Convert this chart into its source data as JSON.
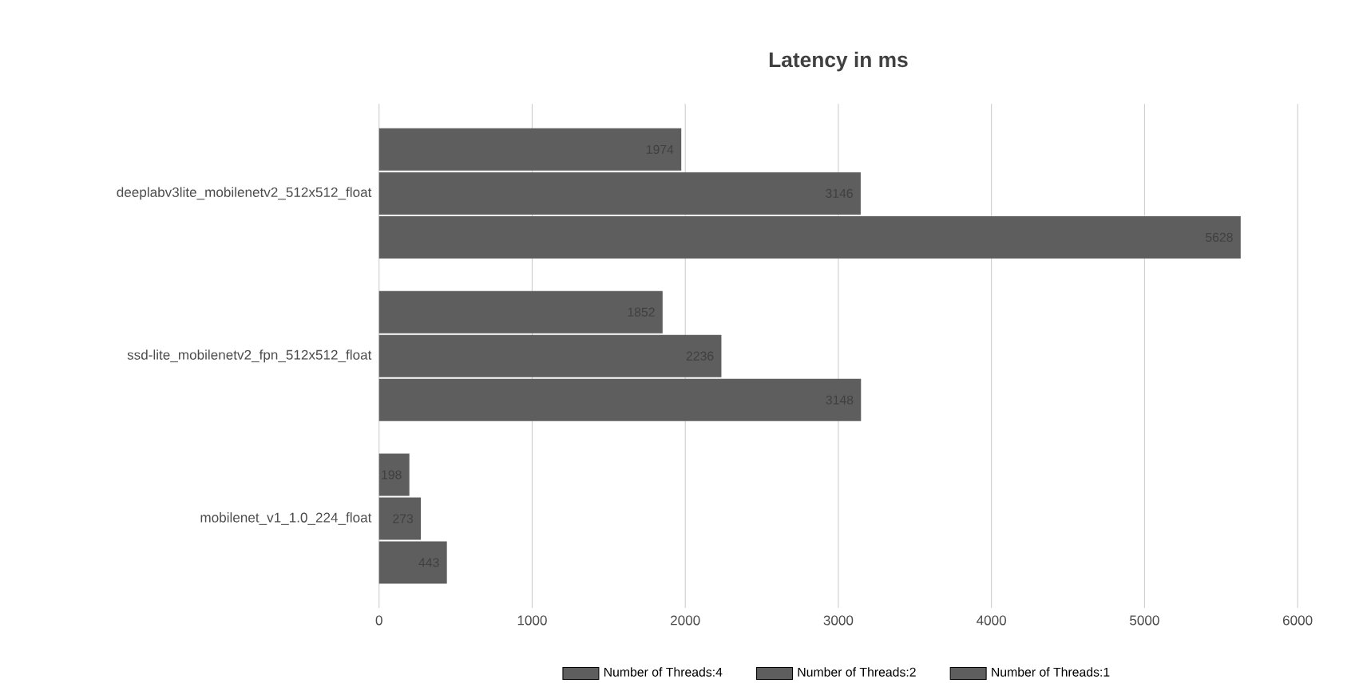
{
  "chart_data": {
    "type": "bar",
    "orientation": "horizontal",
    "title": "Latency in ms",
    "categories": [
      "deeplabv3lite_mobilenetv2_512x512_float",
      "ssd-lite_mobilenetv2_fpn_512x512_float",
      "mobilenet_v1_1.0_224_float"
    ],
    "series": [
      {
        "name": "Number of Threads:4",
        "color": "#5e5e5e",
        "values": [
          1974,
          1852,
          198
        ]
      },
      {
        "name": "Number of Threads:2",
        "color": "#5e5e5e",
        "values": [
          3146,
          2236,
          273
        ]
      },
      {
        "name": "Number of Threads:1",
        "color": "#5e5e5e",
        "values": [
          5628,
          3148,
          443
        ]
      }
    ],
    "xlim": [
      0,
      6000
    ],
    "xticks": [
      0,
      1000,
      2000,
      3000,
      4000,
      5000,
      6000
    ],
    "grid": "x",
    "legend": "bottom",
    "data_labels": true
  }
}
